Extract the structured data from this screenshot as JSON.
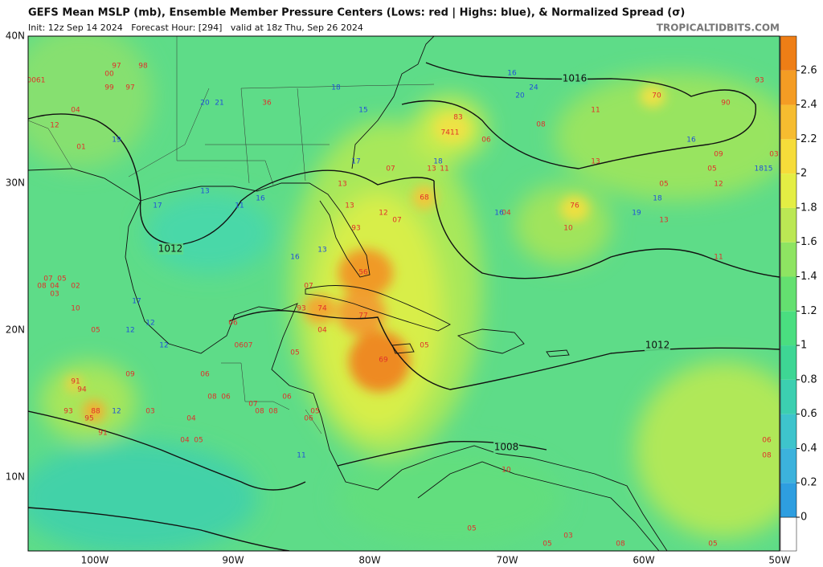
{
  "title": "GEFS Mean MSLP (mb), Ensemble Member Pressure Centers (Lows: red | Highs: blue), & Normalized Spread (σ)",
  "subtitle": "Init: 12z Sep 14 2024   Forecast Hour: [294]   valid at 18z Thu, Sep 26 2024",
  "site": "TROPICALTIDBITS.COM",
  "lat_labels": [
    "40N",
    "30N",
    "20N",
    "10N"
  ],
  "lon_labels": [
    "100W",
    "90W",
    "80W",
    "70W",
    "60W",
    "50W"
  ],
  "isobar_labels": [
    "1016",
    "1012",
    "1012",
    "1008"
  ],
  "colorbar": {
    "ticks": [
      0,
      0.2,
      0.4,
      0.6,
      0.8,
      1,
      1.2,
      1.4,
      1.6,
      1.8,
      2,
      2.2,
      2.4,
      2.6
    ],
    "lim": [
      0,
      2.8
    ],
    "colors": [
      "#2e9ee0",
      "#3cb2dc",
      "#3ec4cc",
      "#3ccfb0",
      "#3ed694",
      "#4ade80",
      "#64e070",
      "#8ee462",
      "#bbe854",
      "#e4ee44",
      "#f6dc3a",
      "#f6bc30",
      "#f49c24",
      "#ee7e16"
    ]
  },
  "low_color": "#e0302a",
  "high_color": "#2050d8",
  "lows": [
    "97",
    "98",
    "00",
    "99",
    "97",
    "04",
    "12",
    "01",
    "0061",
    "36",
    "83",
    "7411",
    "06",
    "08",
    "11",
    "70",
    "90",
    "93",
    "03",
    "09",
    "05",
    "12",
    "05",
    "13",
    "76",
    "10",
    "04",
    "13",
    "11",
    "07",
    "13",
    "11",
    "68",
    "12",
    "07",
    "13",
    "13",
    "93",
    "56",
    "07",
    "93",
    "74",
    "77",
    "04",
    "69",
    "05",
    "05",
    "06",
    "0607",
    "09",
    "91",
    "94",
    "93",
    "88",
    "95",
    "91",
    "03",
    "04",
    "04",
    "05",
    "06",
    "08",
    "06",
    "07",
    "08",
    "08",
    "06",
    "06",
    "05",
    "10",
    "06",
    "08",
    "03",
    "05",
    "05",
    "08",
    "05",
    "07",
    "05",
    "04",
    "02",
    "03",
    "10",
    "05",
    "08"
  ],
  "highs": [
    "18",
    "20",
    "21",
    "15",
    "19",
    "17",
    "13",
    "11",
    "16",
    "17",
    "16",
    "13",
    "17",
    "12",
    "12",
    "12",
    "12",
    "18",
    "16",
    "16",
    "24",
    "20",
    "16",
    "1815",
    "18",
    "19",
    "11"
  ]
}
